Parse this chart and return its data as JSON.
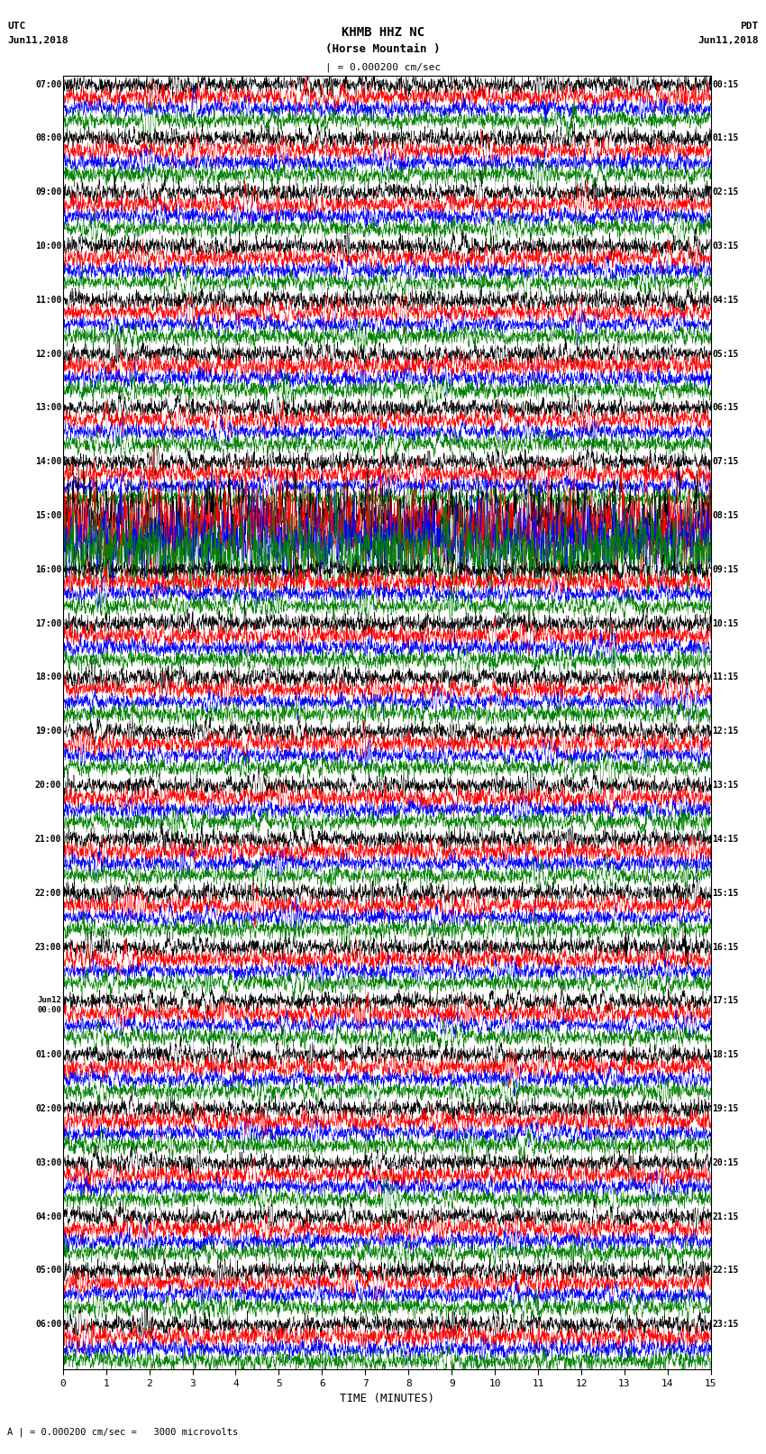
{
  "title_line1": "KHMB HHZ NC",
  "title_line2": "(Horse Mountain )",
  "scale_text": "| = 0.000200 cm/sec",
  "footer_text": "A | = 0.000200 cm/sec =   3000 microvolts",
  "left_label_line1": "UTC",
  "left_label_line2": "Jun11,2018",
  "right_label_line1": "PDT",
  "right_label_line2": "Jun11,2018",
  "xlabel": "TIME (MINUTES)",
  "left_times": [
    "07:00",
    "08:00",
    "09:00",
    "10:00",
    "11:00",
    "12:00",
    "13:00",
    "14:00",
    "15:00",
    "16:00",
    "17:00",
    "18:00",
    "19:00",
    "20:00",
    "21:00",
    "22:00",
    "23:00",
    "00:00",
    "01:00",
    "02:00",
    "03:00",
    "04:00",
    "05:00",
    "06:00"
  ],
  "left_times_prefix": [
    "",
    "",
    "",
    "",
    "",
    "",
    "",
    "",
    "",
    "",
    "",
    "",
    "",
    "",
    "",
    "",
    "",
    "Jun12",
    "",
    "",
    "",
    "",
    "",
    ""
  ],
  "right_times": [
    "00:15",
    "01:15",
    "02:15",
    "03:15",
    "04:15",
    "05:15",
    "06:15",
    "07:15",
    "08:15",
    "09:15",
    "10:15",
    "11:15",
    "12:15",
    "13:15",
    "14:15",
    "15:15",
    "16:15",
    "17:15",
    "18:15",
    "19:15",
    "20:15",
    "21:15",
    "22:15",
    "23:15"
  ],
  "colors": [
    "black",
    "red",
    "blue",
    "green"
  ],
  "bg_color": "white",
  "plot_bg": "white",
  "n_rows": 24,
  "n_traces_per_row": 4,
  "minutes": 15,
  "samples_per_trace": 2700,
  "figsize": [
    8.5,
    16.13
  ],
  "dpi": 100,
  "grid_color": "#aaaaaa",
  "border_color": "black",
  "special_row": 8,
  "special_amplitude": 4.0
}
